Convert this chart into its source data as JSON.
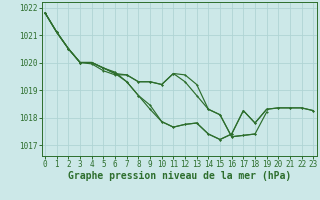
{
  "xlabel": "Graphe pression niveau de la mer (hPa)",
  "ylim": [
    1016.6,
    1022.2
  ],
  "xlim": [
    -0.3,
    23.3
  ],
  "yticks": [
    1017,
    1018,
    1019,
    1020,
    1021,
    1022
  ],
  "xticks": [
    0,
    1,
    2,
    3,
    4,
    5,
    6,
    7,
    8,
    9,
    10,
    11,
    12,
    13,
    14,
    15,
    16,
    17,
    18,
    19,
    20,
    21,
    22,
    23
  ],
  "bg_color": "#cce8e8",
  "grid_color": "#b0d4d4",
  "line_color": "#2d6e2d",
  "series": [
    [
      1021.8,
      1021.1,
      1020.5,
      1020.0,
      1019.95,
      1019.7,
      1019.55,
      1019.55,
      1019.3,
      1019.3,
      1019.2,
      1019.6,
      1019.55,
      1019.2,
      1018.3,
      1018.1,
      1017.3,
      1017.35,
      1017.4,
      1018.2,
      null,
      null,
      null,
      null
    ],
    [
      1021.8,
      1021.1,
      1020.5,
      1020.0,
      1020.0,
      1019.8,
      1019.6,
      1019.55,
      1019.3,
      1019.3,
      1019.2,
      1019.6,
      1019.3,
      1018.8,
      1018.3,
      1018.1,
      1017.3,
      1017.35,
      1017.4,
      null,
      null,
      null,
      null,
      null
    ],
    [
      1021.8,
      1021.1,
      1020.5,
      1020.0,
      1020.0,
      1019.8,
      1019.6,
      1019.3,
      1018.8,
      1018.3,
      1017.85,
      1017.65,
      1017.75,
      1017.8,
      1017.4,
      1017.2,
      1017.4,
      1018.25,
      1017.8,
      1018.3,
      1018.35,
      1018.35,
      1018.35,
      1018.25
    ],
    [
      1021.8,
      1021.1,
      1020.5,
      1020.0,
      1020.0,
      1019.8,
      1019.65,
      1019.3,
      1018.8,
      1018.45,
      1017.85,
      1017.65,
      1017.75,
      1017.8,
      1017.4,
      1017.2,
      1017.4,
      1018.25,
      1017.8,
      1018.3,
      1018.35,
      1018.35,
      1018.35,
      1018.25
    ]
  ],
  "font_family": "monospace",
  "tick_fontsize": 5.5,
  "label_fontsize": 7.0,
  "lw": 0.85,
  "markersize": 2.0
}
